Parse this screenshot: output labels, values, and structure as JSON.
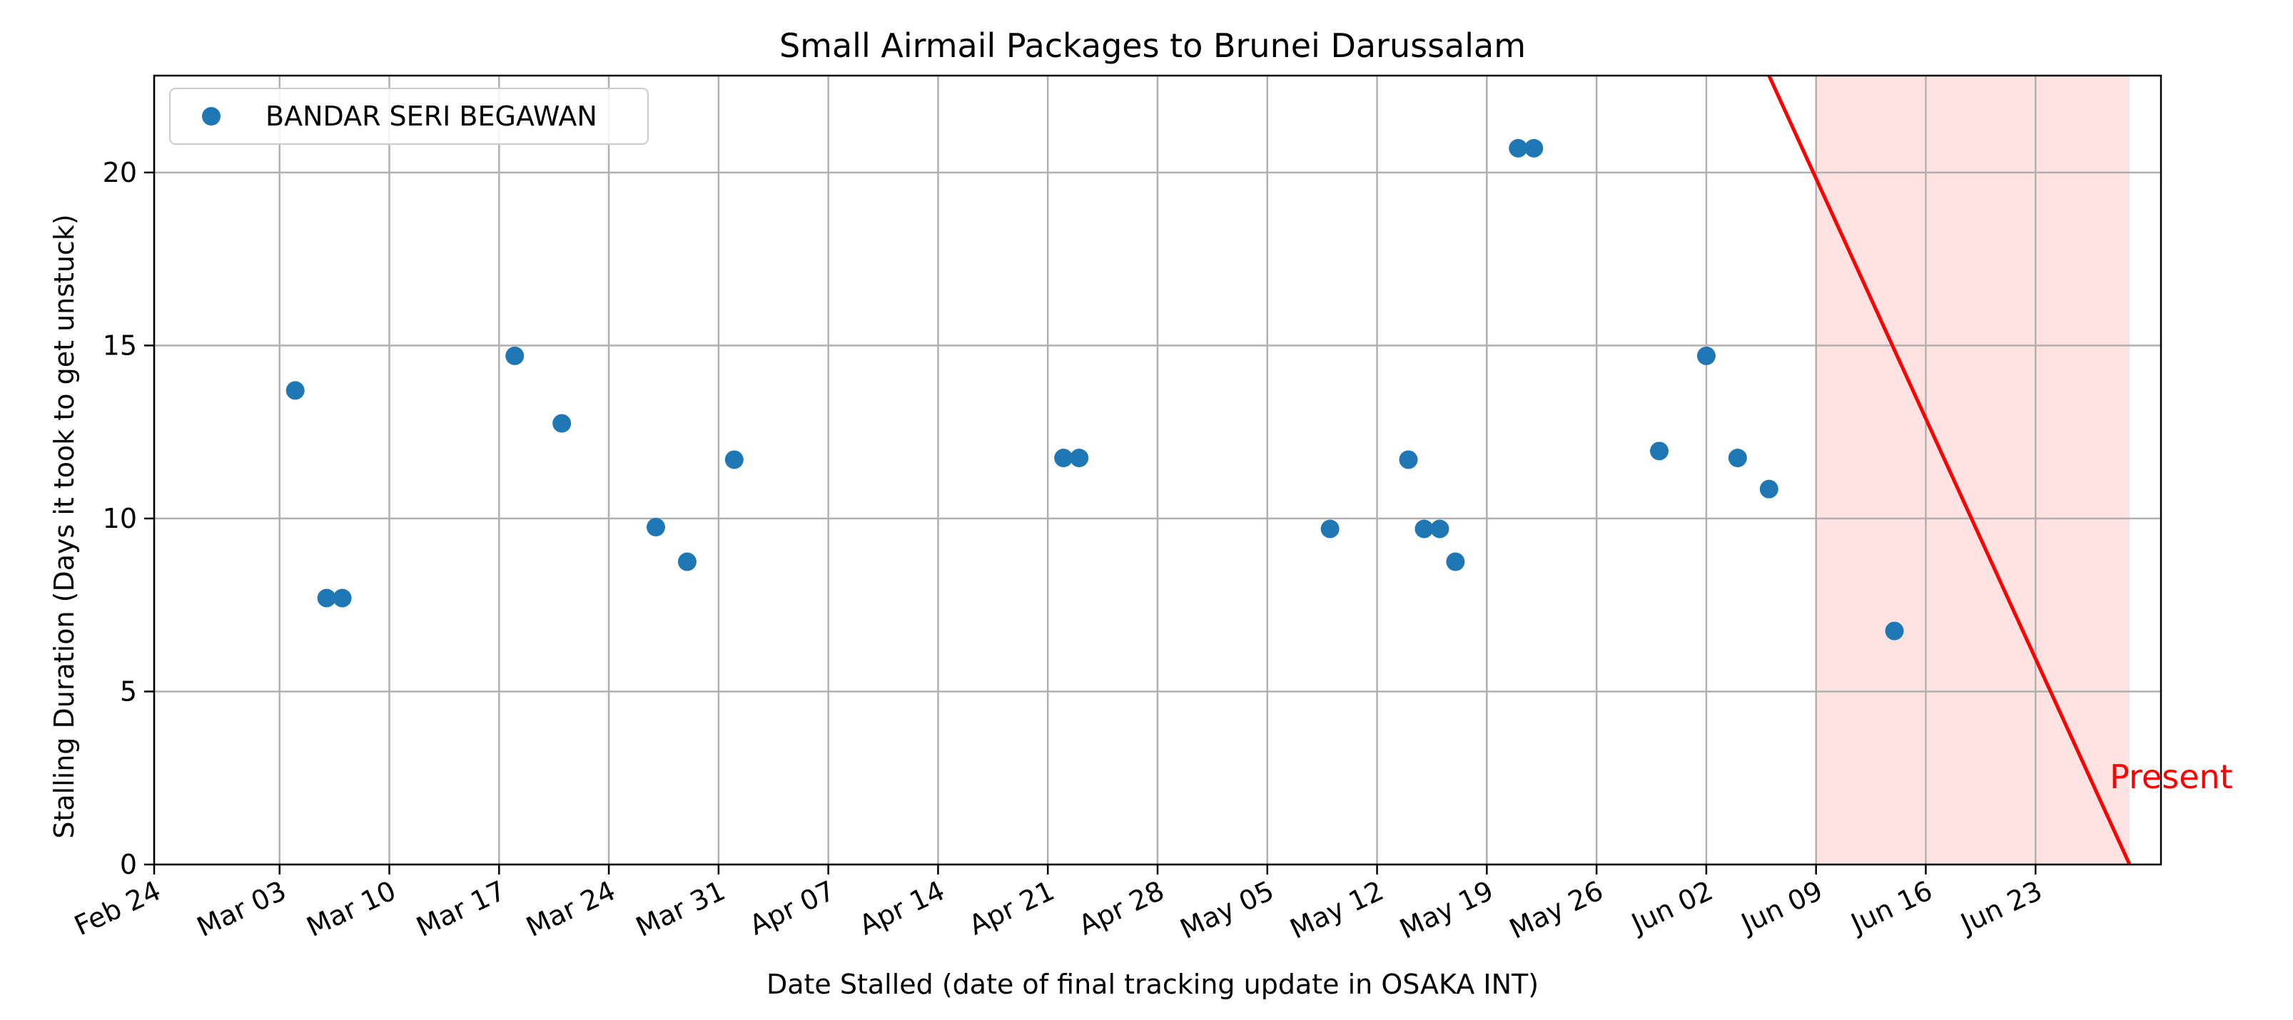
{
  "chart_data": {
    "type": "scatter",
    "title": "Small Airmail Packages to Brunei Darussalam",
    "xlabel": "Date Stalled (date of final tracking update in OSAKA INT)",
    "ylabel": "Stalling Duration (Days it took to get unstuck)",
    "x_scale": "date",
    "xlim": [
      "2024-02-24",
      "2024-07-01"
    ],
    "ylim": [
      0,
      22.8
    ],
    "x_ticks": [
      "2024-02-24",
      "2024-03-03",
      "2024-03-10",
      "2024-03-17",
      "2024-03-24",
      "2024-03-31",
      "2024-04-07",
      "2024-04-14",
      "2024-04-21",
      "2024-04-28",
      "2024-05-05",
      "2024-05-12",
      "2024-05-19",
      "2024-05-26",
      "2024-06-02",
      "2024-06-09",
      "2024-06-16",
      "2024-06-23"
    ],
    "x_tick_labels": [
      "Feb 24",
      "Mar 03",
      "Mar 10",
      "Mar 17",
      "Mar 24",
      "Mar 31",
      "Apr 07",
      "Apr 14",
      "Apr 21",
      "Apr 28",
      "May 05",
      "May 12",
      "May 19",
      "May 26",
      "Jun 02",
      "Jun 09",
      "Jun 16",
      "Jun 23"
    ],
    "y_ticks": [
      0,
      5,
      10,
      15,
      20
    ],
    "y_tick_labels": [
      "0",
      "5",
      "10",
      "15",
      "20"
    ],
    "grid": true,
    "legend_position": "top-left",
    "series": [
      {
        "name": "BANDAR SERI BEGAWAN",
        "color": "#1f77b4",
        "points": [
          {
            "x": "2024-03-04",
            "y": 13.7
          },
          {
            "x": "2024-03-06",
            "y": 7.7
          },
          {
            "x": "2024-03-07",
            "y": 7.7
          },
          {
            "x": "2024-03-18",
            "y": 14.7
          },
          {
            "x": "2024-03-21",
            "y": 12.75
          },
          {
            "x": "2024-03-27",
            "y": 9.75
          },
          {
            "x": "2024-03-29",
            "y": 8.75
          },
          {
            "x": "2024-04-01",
            "y": 11.7
          },
          {
            "x": "2024-04-22",
            "y": 11.75
          },
          {
            "x": "2024-04-23",
            "y": 11.75
          },
          {
            "x": "2024-05-09",
            "y": 9.7
          },
          {
            "x": "2024-05-14",
            "y": 11.7
          },
          {
            "x": "2024-05-15",
            "y": 9.7
          },
          {
            "x": "2024-05-16",
            "y": 9.7
          },
          {
            "x": "2024-05-17",
            "y": 8.75
          },
          {
            "x": "2024-05-21",
            "y": 20.7
          },
          {
            "x": "2024-05-22",
            "y": 20.7
          },
          {
            "x": "2024-05-30",
            "y": 11.95
          },
          {
            "x": "2024-06-02",
            "y": 14.7
          },
          {
            "x": "2024-06-04",
            "y": 11.75
          },
          {
            "x": "2024-06-06",
            "y": 10.85
          },
          {
            "x": "2024-06-14",
            "y": 6.75
          }
        ]
      }
    ],
    "annotations": [
      {
        "type": "line",
        "color": "#ff0000",
        "from": {
          "x": "2024-06-06",
          "y": 22.8
        },
        "to": {
          "x": "2024-06-29",
          "y": 0
        }
      },
      {
        "type": "shaded-region",
        "color": "#ffcccc",
        "x_from": "2024-06-09",
        "x_to": "2024-06-29"
      },
      {
        "type": "text",
        "text": "Present",
        "color": "#ff0000",
        "x": "2024-06-28",
        "y": 2.6
      }
    ]
  }
}
